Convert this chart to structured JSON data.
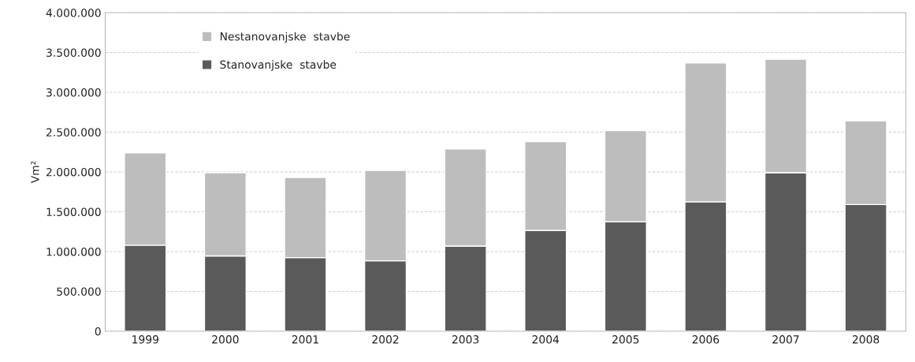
{
  "chart_data": {
    "type": "bar",
    "stacked": true,
    "ylabel": "Vm²",
    "categories": [
      "1999",
      "2000",
      "2001",
      "2002",
      "2003",
      "2004",
      "2005",
      "2006",
      "2007",
      "2008"
    ],
    "series": [
      {
        "name": "Stanovanjske  stavbe",
        "color": "#5a5a5a",
        "values": [
          1080000,
          945000,
          925000,
          885000,
          1070000,
          1265000,
          1375000,
          1625000,
          1990000,
          1590000
        ]
      },
      {
        "name": "Nestanovanjske  stavbe",
        "color": "#bdbdbd",
        "values": [
          1160000,
          1045000,
          1005000,
          1135000,
          1220000,
          1115000,
          1145000,
          1745000,
          1425000,
          1050000
        ]
      }
    ],
    "ylim": [
      0,
      4000000
    ],
    "yticks": [
      0,
      {
        "value": 500000,
        "label": "500.000"
      },
      {
        "value": 1000000,
        "label": "1.000.000"
      },
      {
        "value": 1500000,
        "label": "1.500.000"
      },
      {
        "value": 2000000,
        "label": "2.000.000"
      },
      {
        "value": 2500000,
        "label": "2.500.000"
      },
      {
        "value": 3000000,
        "label": "3.000.000"
      },
      {
        "value": 3500000,
        "label": "3.500.000"
      },
      {
        "value": 4000000,
        "label": "4.000.000"
      }
    ],
    "grid": "y",
    "legend": "top left"
  }
}
